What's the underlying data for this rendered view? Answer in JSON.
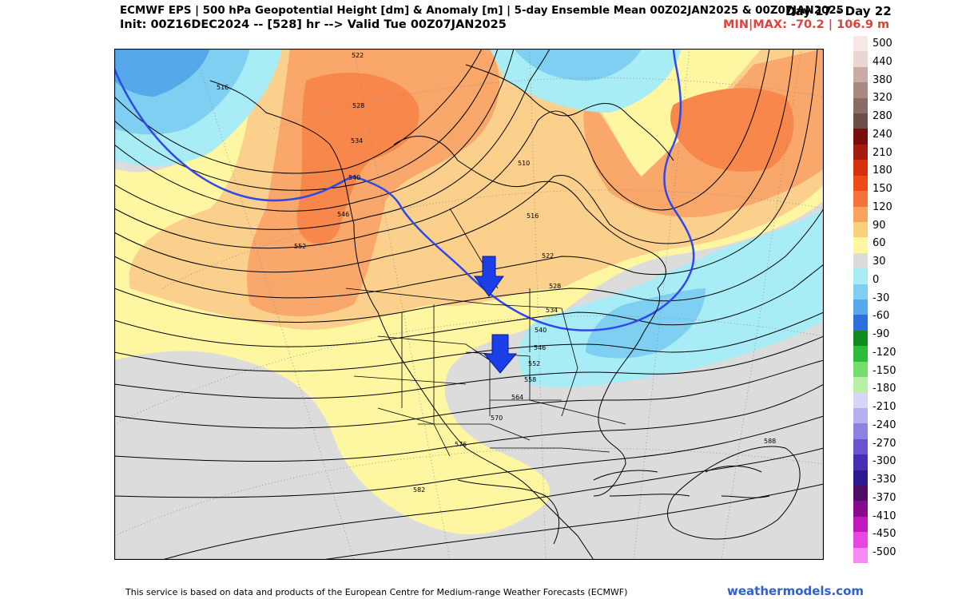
{
  "header": {
    "title": "ECMWF EPS | 500 hPa Geopotential Height [dm] & Anomaly [m] | 5-day Ensemble Mean 00Z02JAN2025 & 00Z07JAN2025",
    "days": "Day 17 - Day 22",
    "init": "Init: 00Z16DEC2024 -- [528] hr --> Valid Tue 00Z07JAN2025",
    "minmax": "MIN|MAX: -70.2 | 106.9 m"
  },
  "colorbar": {
    "labels": [
      "500",
      "440",
      "380",
      "320",
      "280",
      "240",
      "210",
      "180",
      "150",
      "120",
      "90",
      "60",
      "30",
      "0",
      "-30",
      "-60",
      "-90",
      "-120",
      "-150",
      "-180",
      "-210",
      "-240",
      "-270",
      "-300",
      "-330",
      "-370",
      "-410",
      "-450",
      "-500"
    ],
    "colors": [
      "#f7e8e6",
      "#ead7d3",
      "#c9aca5",
      "#a98a82",
      "#8a6c64",
      "#6b4e48",
      "#7a0d0d",
      "#a51c0f",
      "#d6300f",
      "#f04b16",
      "#f7733b",
      "#f9a35d",
      "#fbd07c",
      "#fff6a2",
      "#dcdcdc",
      "#a8ecf5",
      "#7fcff2",
      "#55a9ea",
      "#2f6fdd",
      "#118a22",
      "#2fbb3a",
      "#75dd6d",
      "#b8f0a8",
      "#d5d5f7",
      "#b5b0ef",
      "#8d82e2",
      "#6b52cf",
      "#4a2cb5",
      "#2d1a90",
      "#4f0d68",
      "#880a8c",
      "#bf19bd",
      "#e846e2",
      "#f78af3"
    ]
  },
  "map": {
    "contour_labels": [
      "522",
      "516",
      "528",
      "534",
      "540",
      "546",
      "552",
      "516",
      "510",
      "522",
      "528",
      "534",
      "540",
      "546",
      "552",
      "558",
      "564",
      "570",
      "576",
      "582",
      "588"
    ],
    "anomaly_arrows": [
      "arrow-down-icon",
      "arrow-down-icon"
    ]
  },
  "footer": {
    "attribution": "This service is based on data and products of the European Centre for Medium-range Weather Forecasts (ECMWF)",
    "brand": "weathermodels.com"
  }
}
